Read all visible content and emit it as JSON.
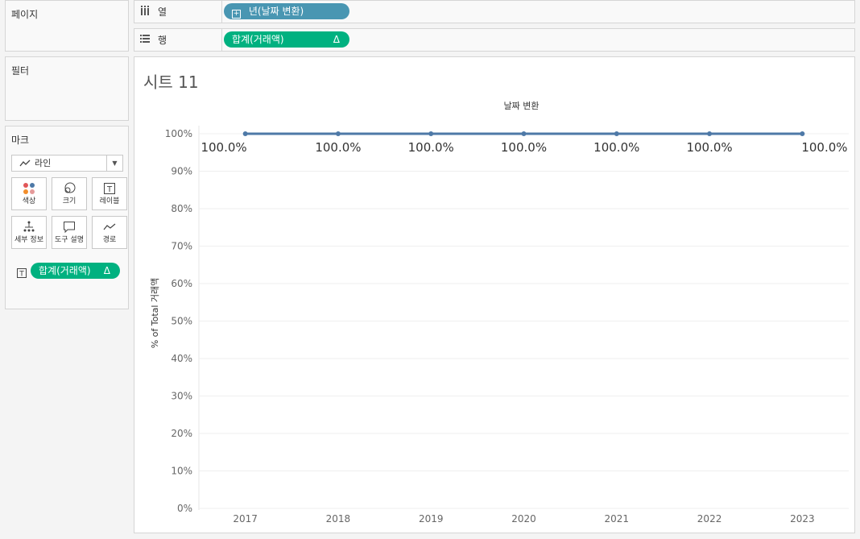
{
  "panels": {
    "pages": {
      "title": "페이지"
    },
    "filters": {
      "title": "필터"
    },
    "marks": {
      "title": "마크",
      "type_label": "라인",
      "buttons": [
        {
          "label": "색상",
          "icon": "color-icon"
        },
        {
          "label": "크기",
          "icon": "size-icon"
        },
        {
          "label": "레이블",
          "icon": "label-icon"
        },
        {
          "label": "세부 정보",
          "icon": "detail-icon"
        },
        {
          "label": "도구 설명",
          "icon": "tooltip-icon"
        },
        {
          "label": "경로",
          "icon": "path-icon"
        }
      ],
      "pill_label": "합계(거래액)",
      "pill_delta": "Δ"
    }
  },
  "shelves": {
    "columns": {
      "label": "열",
      "pill": "년(날짜 변환)"
    },
    "rows": {
      "label": "행",
      "pill": "합계(거래액)",
      "pill_delta": "Δ"
    }
  },
  "sheet": {
    "title": "시트 11"
  },
  "colors": {
    "line": "#4e79a7",
    "pill_blue": "#4996b2",
    "pill_green": "#00b180"
  },
  "chart_data": {
    "type": "line",
    "title": "날짜 변환",
    "ylabel": "% of Total 거래액",
    "xlabel": "",
    "categories": [
      "2017",
      "2018",
      "2019",
      "2020",
      "2021",
      "2022",
      "2023"
    ],
    "y_ticks": [
      "0%",
      "10%",
      "20%",
      "30%",
      "40%",
      "50%",
      "60%",
      "70%",
      "80%",
      "90%",
      "100%"
    ],
    "ylim": [
      0,
      100
    ],
    "series": [
      {
        "values": [
          100,
          100,
          100,
          100,
          100,
          100,
          100
        ],
        "labels": [
          "100.0%",
          "100.0%",
          "100.0%",
          "100.0%",
          "100.0%",
          "100.0%",
          "100.0%"
        ]
      }
    ],
    "grid": true
  }
}
